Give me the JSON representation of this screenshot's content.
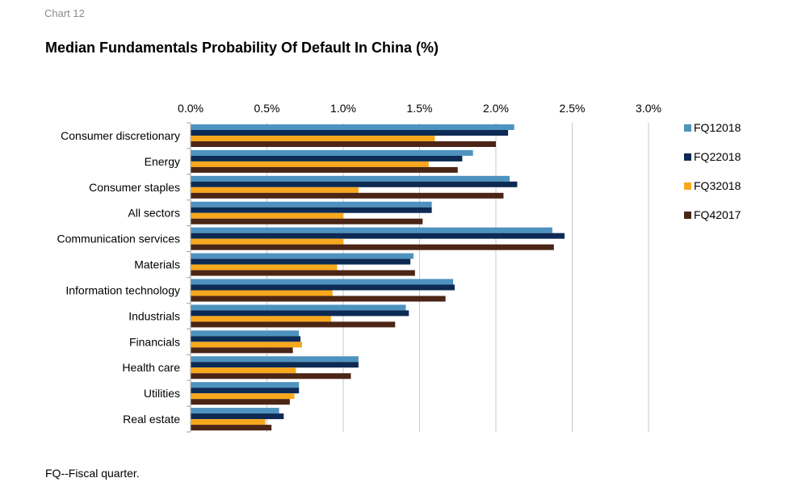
{
  "header": {
    "chart_number": "Chart 12",
    "title": "Median Fundamentals Probability Of Default In China (%)"
  },
  "footnote": "FQ--Fiscal quarter.",
  "colors": {
    "FQ12018": "#4e93bf",
    "FQ22018": "#0c2a53",
    "FQ32018": "#f8a81e",
    "FQ42017": "#4b2515",
    "gridline": "#c8c8c8",
    "axis": "#a6a6a6"
  },
  "chart_data": {
    "type": "bar",
    "orientation": "horizontal",
    "title": "Median Fundamentals Probability Of Default In China (%)",
    "xlabel": "",
    "ylabel": "",
    "xlim": [
      0,
      3.0
    ],
    "x_ticks": [
      0,
      0.5,
      1.0,
      1.5,
      2.0,
      2.5,
      3.0
    ],
    "x_tick_labels": [
      "0.0%",
      "0.5%",
      "1.0%",
      "1.5%",
      "2.0%",
      "2.5%",
      "3.0%"
    ],
    "x_axis_position": "top",
    "grid": true,
    "legend_position": "right",
    "categories": [
      "Consumer discretionary",
      "Energy",
      "Consumer staples",
      "All sectors",
      "Communication services",
      "Materials",
      "Information technology",
      "Industrials",
      "Financials",
      "Health care",
      "Utilities",
      "Real estate"
    ],
    "series": [
      {
        "name": "FQ12018",
        "values": [
          2.12,
          1.85,
          2.09,
          1.58,
          2.37,
          1.46,
          1.72,
          1.41,
          0.71,
          1.1,
          0.71,
          0.58
        ]
      },
      {
        "name": "FQ22018",
        "values": [
          2.08,
          1.78,
          2.14,
          1.58,
          2.45,
          1.44,
          1.73,
          1.43,
          0.72,
          1.1,
          0.71,
          0.61
        ]
      },
      {
        "name": "FQ32018",
        "values": [
          1.6,
          1.56,
          1.1,
          1.0,
          1.0,
          0.96,
          0.93,
          0.92,
          0.73,
          0.69,
          0.68,
          0.49
        ]
      },
      {
        "name": "FQ42017",
        "values": [
          2.0,
          1.75,
          2.05,
          1.52,
          2.38,
          1.47,
          1.67,
          1.34,
          0.67,
          1.05,
          0.65,
          0.53
        ]
      }
    ]
  }
}
